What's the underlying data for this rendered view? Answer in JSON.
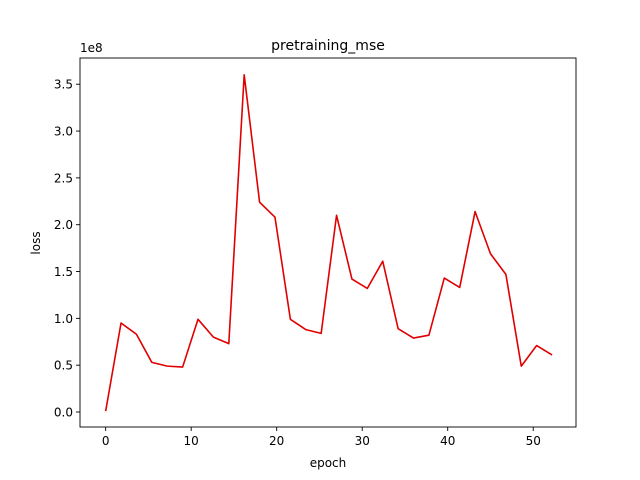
{
  "chart_data": {
    "type": "line",
    "title": "pretraining_mse",
    "xlabel": "epoch",
    "ylabel": "loss",
    "offset_label": "1e8",
    "xlim": [
      -3,
      55
    ],
    "ylim": [
      -0.16,
      3.78
    ],
    "x_ticks": [
      0,
      10,
      20,
      30,
      40,
      50
    ],
    "y_ticks": [
      0.0,
      0.5,
      1.0,
      1.5,
      2.0,
      2.5,
      3.0,
      3.5
    ],
    "grid": false,
    "colors": {
      "line": "#e00000"
    },
    "series": [
      {
        "x": [
          0,
          1.8,
          3.6,
          5.4,
          7.2,
          9,
          10.8,
          12.6,
          14.4,
          16.2,
          18,
          19.8,
          21.6,
          23.4,
          25.2,
          27,
          28.8,
          30.6,
          32.4,
          34.2,
          36,
          37.8,
          39.6,
          41.4,
          43.2,
          45,
          46.8,
          48.6,
          50.4,
          52.2
        ],
        "values": [
          0.01,
          0.95,
          0.83,
          0.53,
          0.49,
          0.48,
          0.99,
          0.8,
          0.73,
          3.6,
          2.24,
          2.08,
          0.99,
          0.88,
          0.84,
          2.1,
          1.42,
          1.32,
          1.61,
          0.89,
          0.79,
          0.82,
          1.43,
          1.33,
          2.14,
          1.69,
          1.47,
          0.49,
          0.71,
          0.61
        ]
      }
    ]
  }
}
